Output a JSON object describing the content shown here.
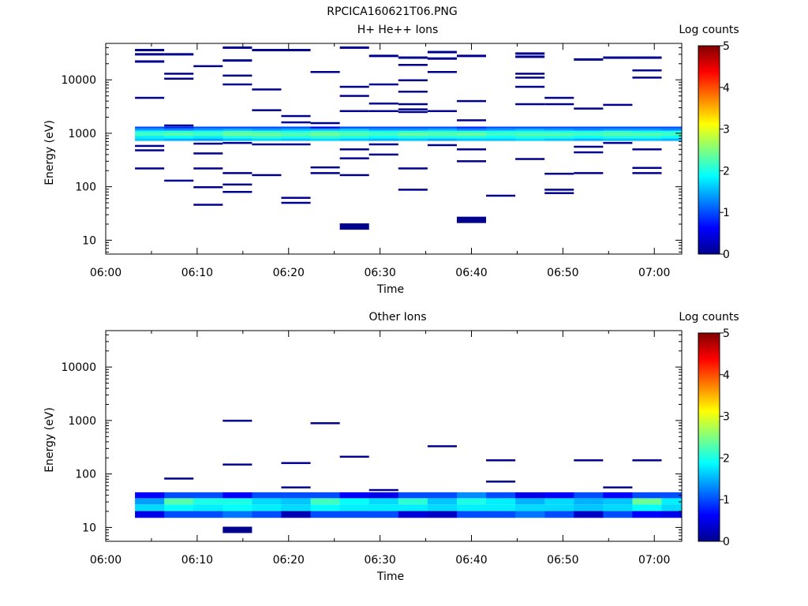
{
  "figure_title": "RPCICA160621T06.PNG",
  "chart_data": [
    {
      "type": "heatmap",
      "title": "H+ He++ Ions",
      "xlabel": "Time",
      "ylabel": "Energy (eV)",
      "x_ticks": [
        "06:00",
        "06:10",
        "06:20",
        "06:30",
        "06:40",
        "06:50",
        "07:00"
      ],
      "x_range_minutes": [
        0,
        63
      ],
      "y_scale": "log",
      "y_ticks": [
        "10",
        "100",
        "1000",
        "10000"
      ],
      "y_range": [
        5.5,
        48000
      ],
      "colorbar_label": "Log counts",
      "colorbar_ticks": [
        "0",
        "1",
        "2",
        "3",
        "4",
        "5"
      ],
      "colorbar_range": [
        0,
        5
      ],
      "time_bins_minutes": [
        3.2,
        6.4,
        9.6,
        12.8,
        16.0,
        19.2,
        22.4,
        25.6,
        28.8,
        32.0,
        35.2,
        38.4,
        41.6,
        44.8,
        48.0,
        51.2,
        54.4,
        57.6,
        60.8
      ],
      "band_energies_eV": [
        760,
        850,
        950,
        1060,
        1180,
        1280
      ],
      "band_values": [
        [
          1.6,
          1.8,
          2.2,
          2.0,
          1.4,
          1.0
        ],
        [
          1.5,
          1.9,
          2.3,
          2.1,
          1.3,
          0.8
        ],
        [
          1.4,
          1.8,
          2.2,
          2.0,
          1.4,
          1.0
        ],
        [
          1.6,
          2.0,
          2.4,
          2.2,
          1.5,
          1.0
        ],
        [
          1.7,
          2.1,
          2.4,
          2.1,
          1.4,
          1.0
        ],
        [
          1.6,
          2.0,
          2.3,
          2.0,
          1.5,
          1.0
        ],
        [
          1.7,
          2.1,
          2.4,
          2.2,
          1.5,
          0.5
        ],
        [
          1.6,
          2.0,
          2.3,
          2.1,
          1.6,
          1.0
        ],
        [
          1.5,
          1.9,
          2.2,
          2.0,
          1.4,
          1.0
        ],
        [
          1.6,
          2.0,
          2.4,
          2.1,
          1.4,
          1.0
        ],
        [
          1.5,
          2.0,
          2.3,
          2.1,
          1.5,
          1.0
        ],
        [
          1.6,
          2.0,
          2.4,
          2.1,
          1.3,
          0.8
        ],
        [
          1.6,
          1.9,
          2.2,
          2.0,
          1.4,
          1.0
        ],
        [
          1.7,
          2.0,
          2.3,
          2.0,
          1.5,
          1.0
        ],
        [
          1.6,
          2.0,
          2.3,
          2.0,
          1.4,
          1.0
        ],
        [
          1.5,
          1.9,
          2.2,
          2.0,
          1.3,
          1.0
        ],
        [
          1.6,
          2.0,
          2.3,
          2.1,
          1.4,
          1.0
        ],
        [
          1.6,
          2.0,
          2.3,
          2.0,
          1.4,
          1.0
        ],
        [
          1.5,
          1.9,
          2.2,
          2.0,
          1.3,
          1.0
        ]
      ],
      "sparse_counts": [
        {
          "t": 3.2,
          "e": [
            36000,
            30000,
            22000,
            4600,
            580,
            480,
            220
          ]
        },
        {
          "t": 6.4,
          "e": [
            30000,
            13000,
            10500,
            1400,
            130
          ]
        },
        {
          "t": 9.6,
          "e": [
            18000,
            640,
            420,
            220,
            98,
            46
          ]
        },
        {
          "t": 12.8,
          "e": [
            40000,
            23000,
            12000,
            8200,
            660,
            180,
            110,
            80
          ]
        },
        {
          "t": 16.0,
          "e": [
            36000,
            6600,
            2700,
            620,
            165
          ]
        },
        {
          "t": 19.2,
          "e": [
            36000,
            2100,
            1600,
            620,
            62,
            50
          ]
        },
        {
          "t": 22.4,
          "e": [
            14000,
            1550,
            230,
            180
          ]
        },
        {
          "t": 25.6,
          "e": [
            40000,
            7400,
            5000,
            2600,
            500,
            340,
            165,
            18
          ]
        },
        {
          "t": 28.8,
          "e": [
            28000,
            8200,
            3600,
            2600,
            620,
            400
          ]
        },
        {
          "t": 32.0,
          "e": [
            26000,
            19000,
            9800,
            6000,
            3500,
            2800,
            2500,
            220,
            88
          ]
        },
        {
          "t": 35.2,
          "e": [
            33000,
            25000,
            14000,
            2600,
            600
          ]
        },
        {
          "t": 38.4,
          "e": [
            28000,
            4000,
            1750,
            500,
            300,
            24
          ]
        },
        {
          "t": 41.6,
          "e": [
            68
          ]
        },
        {
          "t": 44.8,
          "e": [
            31000,
            27000,
            13000,
            11000,
            7400,
            3500,
            330
          ]
        },
        {
          "t": 48.0,
          "e": [
            4600,
            3500,
            175,
            88,
            76
          ]
        },
        {
          "t": 51.2,
          "e": [
            24000,
            2900,
            560,
            440,
            180
          ]
        },
        {
          "t": 54.4,
          "e": [
            26000,
            3400,
            660
          ]
        },
        {
          "t": 57.6,
          "e": [
            26000,
            15000,
            11000,
            500,
            225,
            180
          ]
        }
      ]
    },
    {
      "type": "heatmap",
      "title": "Other Ions",
      "xlabel": "Time",
      "ylabel": "Energy (eV)",
      "x_ticks": [
        "06:00",
        "06:10",
        "06:20",
        "06:30",
        "06:40",
        "06:50",
        "07:00"
      ],
      "x_range_minutes": [
        0,
        63
      ],
      "y_scale": "log",
      "y_ticks": [
        "10",
        "100",
        "1000",
        "10000"
      ],
      "y_range": [
        5.5,
        48000
      ],
      "colorbar_label": "Log counts",
      "colorbar_ticks": [
        "0",
        "1",
        "2",
        "3",
        "4",
        "5"
      ],
      "colorbar_range": [
        0,
        5
      ],
      "time_bins_minutes": [
        3.2,
        6.4,
        9.6,
        12.8,
        16.0,
        19.2,
        22.4,
        25.6,
        28.8,
        32.0,
        35.2,
        38.4,
        41.6,
        44.8,
        48.0,
        51.2,
        54.4,
        57.6,
        60.8
      ],
      "band_energies_eV": [
        17.5,
        23.5,
        31,
        40
      ],
      "band_values": [
        [
          0.5,
          1.7,
          1.4,
          0.6
        ],
        [
          1.0,
          1.9,
          2.3,
          1.0
        ],
        [
          1.0,
          1.8,
          2.0,
          1.0
        ],
        [
          1.2,
          1.9,
          2.0,
          0.6
        ],
        [
          1.0,
          1.8,
          1.7,
          1.0
        ],
        [
          0.2,
          1.7,
          1.6,
          1.0
        ],
        [
          1.0,
          1.9,
          2.2,
          1.0
        ],
        [
          1.0,
          1.8,
          1.9,
          0.6
        ],
        [
          1.0,
          1.8,
          1.7,
          0.5
        ],
        [
          0.4,
          1.8,
          2.1,
          1.0
        ],
        [
          0.3,
          1.7,
          1.6,
          1.0
        ],
        [
          1.0,
          1.8,
          2.0,
          1.3
        ],
        [
          1.0,
          1.8,
          1.8,
          1.0
        ],
        [
          1.2,
          1.7,
          1.5,
          0.5
        ],
        [
          1.0,
          1.7,
          1.7,
          0.6
        ],
        [
          0.3,
          1.6,
          1.5,
          1.0
        ],
        [
          1.0,
          1.7,
          1.6,
          0.6
        ],
        [
          0.6,
          1.9,
          2.4,
          1.0
        ],
        [
          0.5,
          1.7,
          1.8,
          1.0
        ]
      ],
      "sparse_counts": [
        {
          "t": 6.4,
          "e": [
            82
          ]
        },
        {
          "t": 12.8,
          "e": [
            990,
            150,
            9
          ]
        },
        {
          "t": 19.2,
          "e": [
            160,
            56
          ]
        },
        {
          "t": 22.4,
          "e": [
            890
          ]
        },
        {
          "t": 25.6,
          "e": [
            210
          ]
        },
        {
          "t": 28.8,
          "e": [
            50
          ]
        },
        {
          "t": 35.2,
          "e": [
            330
          ]
        },
        {
          "t": 41.6,
          "e": [
            180,
            72
          ]
        },
        {
          "t": 51.2,
          "e": [
            180
          ]
        },
        {
          "t": 54.4,
          "e": [
            56
          ]
        },
        {
          "t": 57.6,
          "e": [
            180
          ]
        }
      ]
    }
  ]
}
